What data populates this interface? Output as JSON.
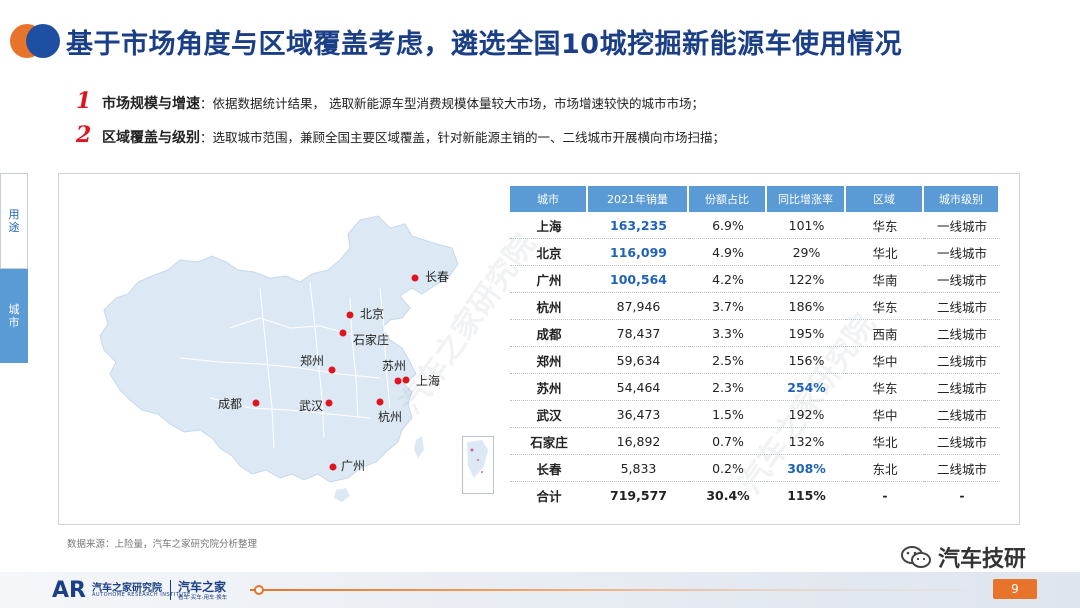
{
  "title": "基于市场角度与区域覆盖考虑，遴选全国10城挖掘新能源车使用情况",
  "criteria": [
    {
      "num": "1",
      "head": "市场规模与增速",
      "text": "：依据数据统计结果， 选取新能源车型消费规模体量较大市场，市场增速较快的城市市场；"
    },
    {
      "num": "2",
      "head": "区域覆盖与级别",
      "text": "：选取城市范围，兼顾全国主要区域覆盖，针对新能源主销的一、二线城市开展横向市场扫描；"
    }
  ],
  "side_tabs": [
    "用途",
    "城市"
  ],
  "map": {
    "fill_color": "#dce9f5",
    "border_color": "#ffffff",
    "marker_color": "#e0141e",
    "cities": [
      {
        "name": "长春",
        "dir": "r"
      },
      {
        "name": "北京",
        "dir": "r"
      },
      {
        "name": "石家庄",
        "dir": "r"
      },
      {
        "name": "郑州",
        "dir": "l"
      },
      {
        "name": "苏州",
        "dir": "l"
      },
      {
        "name": "上海",
        "dir": "r"
      },
      {
        "name": "成都",
        "dir": "l"
      },
      {
        "name": "武汉",
        "dir": "l"
      },
      {
        "name": "杭州",
        "dir": "r"
      },
      {
        "name": "广州",
        "dir": "r"
      }
    ]
  },
  "table": {
    "headers": [
      "城市",
      "2021年销量",
      "份额占比",
      "同比增涨率",
      "区域",
      "城市级别"
    ],
    "rows": [
      [
        "上海",
        "163,235",
        "6.9%",
        "101%",
        "华东",
        "一线城市"
      ],
      [
        "北京",
        "116,099",
        "4.9%",
        "29%",
        "华北",
        "一线城市"
      ],
      [
        "广州",
        "100,564",
        "4.2%",
        "122%",
        "华南",
        "一线城市"
      ],
      [
        "杭州",
        "87,946",
        "3.7%",
        "186%",
        "华东",
        "二线城市"
      ],
      [
        "成都",
        "78,437",
        "3.3%",
        "195%",
        "西南",
        "二线城市"
      ],
      [
        "郑州",
        "59,634",
        "2.5%",
        "156%",
        "华中",
        "二线城市"
      ],
      [
        "苏州",
        "54,464",
        "2.3%",
        "254%",
        "华东",
        "二线城市"
      ],
      [
        "武汉",
        "36,473",
        "1.5%",
        "192%",
        "华中",
        "二线城市"
      ],
      [
        "石家庄",
        "16,892",
        "0.7%",
        "132%",
        "华北",
        "二线城市"
      ],
      [
        "长春",
        "5,833",
        "0.2%",
        "308%",
        "东北",
        "二线城市"
      ]
    ],
    "total": [
      "合计",
      "719,577",
      "30.4%",
      "115%",
      "-",
      "-"
    ],
    "highlight_color": "#1e63b8"
  },
  "watermark": "汽车之家研究院",
  "source": "数据来源：上险量，汽车之家研究院分析整理",
  "wechat_name": "汽车技研",
  "footer": {
    "logo": "AR",
    "brand1": "汽车之家研究院",
    "brand1_sub": "AUTOHOME RESEARCH INSTITUTE",
    "brand2": "汽车之家",
    "brand2_sub": "看车·买车·用车·换车",
    "page": "9"
  }
}
